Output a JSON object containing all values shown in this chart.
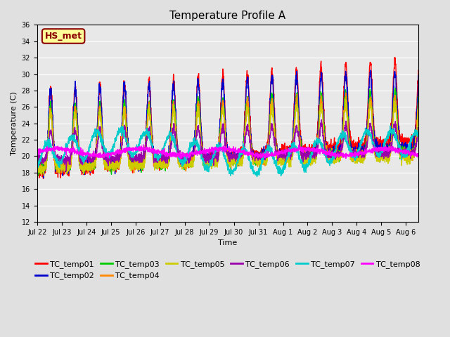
{
  "title": "Temperature Profile A",
  "xlabel": "Time",
  "ylabel": "Temperature (C)",
  "ylim": [
    12,
    36
  ],
  "yticks": [
    12,
    14,
    16,
    18,
    20,
    22,
    24,
    26,
    28,
    30,
    32,
    34,
    36
  ],
  "series_colors": {
    "TC_temp01": "#ff0000",
    "TC_temp02": "#0000cc",
    "TC_temp03": "#00cc00",
    "TC_temp04": "#ff8800",
    "TC_temp05": "#cccc00",
    "TC_temp06": "#9900aa",
    "TC_temp07": "#00cccc",
    "TC_temp08": "#ff00ff"
  },
  "annotation_text": "HS_met",
  "annotation_color": "#8B0000",
  "annotation_bg": "#ffff99",
  "fig_bg_color": "#e0e0e0",
  "plot_bg_color": "#e8e8e8",
  "title_fontsize": 11,
  "axis_fontsize": 8,
  "tick_fontsize": 7,
  "legend_fontsize": 8,
  "x_tick_labels": [
    "Jul 22",
    "Jul 23",
    "Jul 24",
    "Jul 25",
    "Jul 26",
    "Jul 27",
    "Jul 28",
    "Jul 29",
    "Jul 30",
    "Jul 31",
    "Aug 1",
    "Aug 2",
    "Aug 3",
    "Aug 4",
    "Aug 5",
    "Aug 6"
  ]
}
